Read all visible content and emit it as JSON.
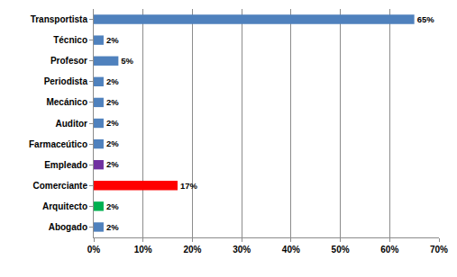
{
  "chart_data": {
    "type": "bar",
    "orientation": "horizontal",
    "categories": [
      "Abogado",
      "Arquitecto",
      "Comerciante",
      "Empleado",
      "Farmaceútico",
      "Auditor",
      "Mecánico",
      "Periodista",
      "Profesor",
      "Técnico",
      "Transportista"
    ],
    "values": [
      2,
      2,
      17,
      2,
      2,
      2,
      2,
      2,
      5,
      2,
      65
    ],
    "value_labels": [
      "2%",
      "2%",
      "17%",
      "2%",
      "2%",
      "2%",
      "2%",
      "2%",
      "5%",
      "2%",
      "65%"
    ],
    "colors": [
      "#4f81bd",
      "#00b050",
      "#ff0000",
      "#7030a0",
      "#4f81bd",
      "#4f81bd",
      "#4f81bd",
      "#4f81bd",
      "#4f81bd",
      "#4f81bd",
      "#4f81bd"
    ],
    "data_labels": true,
    "grid": true,
    "xlim": [
      0,
      70
    ],
    "xticks": [
      {
        "value": 0,
        "label": "0%"
      },
      {
        "value": 10,
        "label": "10%"
      },
      {
        "value": 20,
        "label": "20%"
      },
      {
        "value": 30,
        "label": "30%"
      },
      {
        "value": 40,
        "label": "40%"
      },
      {
        "value": 50,
        "label": "50%"
      },
      {
        "value": 60,
        "label": "60%"
      },
      {
        "value": 70,
        "label": "70%"
      }
    ]
  }
}
